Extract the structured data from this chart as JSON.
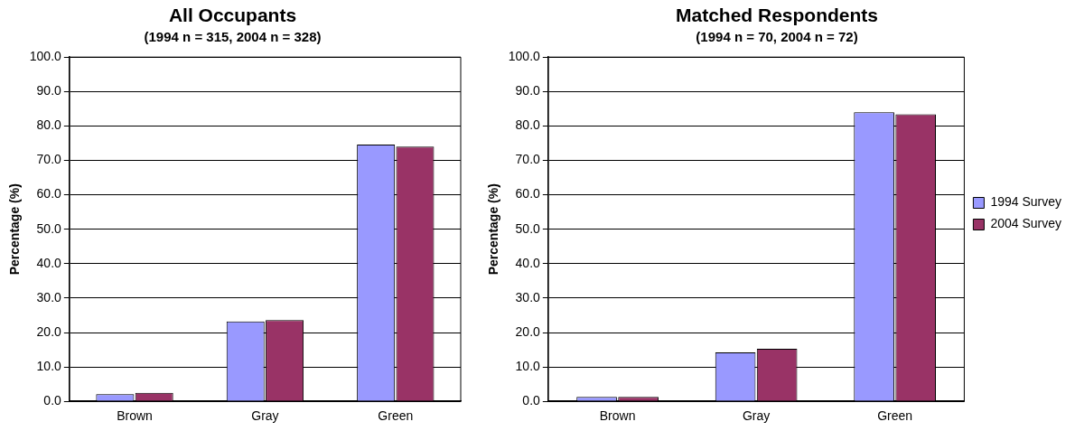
{
  "chart_data": [
    {
      "type": "bar",
      "title": "All Occupants",
      "subtitle": "(1994 n = 315, 2004 n = 328)",
      "ylabel": "Percentage (%)",
      "categories": [
        "Brown",
        "Gray",
        "Green"
      ],
      "series": [
        {
          "color": "#9999ff",
          "values": [
            2.1,
            23.2,
            74.6
          ]
        },
        {
          "color": "#993366",
          "values": [
            2.5,
            23.6,
            74.0
          ]
        }
      ],
      "ylim": [
        0,
        100
      ],
      "yticks": [
        {
          "value": 0,
          "label": "0.0"
        },
        {
          "value": 10,
          "label": "10.0"
        },
        {
          "value": 20,
          "label": "20.0"
        },
        {
          "value": 30,
          "label": "30.0"
        },
        {
          "value": 40,
          "label": "40.0"
        },
        {
          "value": 50,
          "label": "50.0"
        },
        {
          "value": 60,
          "label": "60.0"
        },
        {
          "value": 70,
          "label": "70.0"
        },
        {
          "value": 80,
          "label": "80.0"
        },
        {
          "value": 90,
          "label": "90.0"
        },
        {
          "value": 100,
          "label": "100.0"
        }
      ],
      "grid": "y",
      "legend": false
    },
    {
      "type": "bar",
      "title": "Matched Respondents",
      "subtitle": "(1994 n = 70, 2004 n = 72)",
      "ylabel": "Percentage (%)",
      "categories": [
        "Brown",
        "Gray",
        "Green"
      ],
      "series": [
        {
          "name": "1994 Survey",
          "color": "#9999ff",
          "values": [
            1.3,
            14.2,
            84.0
          ]
        },
        {
          "name": "2004 Survey",
          "color": "#993366",
          "values": [
            1.3,
            15.3,
            83.4
          ]
        }
      ],
      "ylim": [
        0,
        100
      ],
      "yticks": [
        {
          "value": 0,
          "label": "0.0"
        },
        {
          "value": 10,
          "label": "10.0"
        },
        {
          "value": 20,
          "label": "20.0"
        },
        {
          "value": 30,
          "label": "30.0"
        },
        {
          "value": 40,
          "label": "40.0"
        },
        {
          "value": 50,
          "label": "50.0"
        },
        {
          "value": 60,
          "label": "60.0"
        },
        {
          "value": 70,
          "label": "70.0"
        },
        {
          "value": 80,
          "label": "80.0"
        },
        {
          "value": 90,
          "label": "90.0"
        },
        {
          "value": 100,
          "label": "100.0"
        }
      ],
      "grid": "y",
      "legend": "right"
    }
  ]
}
